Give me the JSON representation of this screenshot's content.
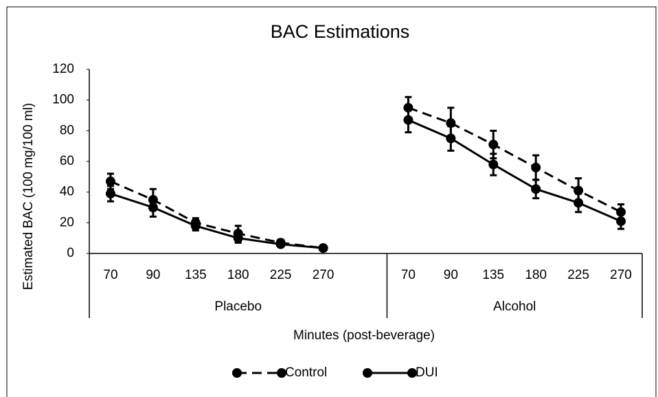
{
  "chart_data": {
    "type": "line",
    "title": "BAC Estimations",
    "xlabel": "Minutes (post-beverage)",
    "ylabel": "Estimated BAC (100 mg/100 ml)",
    "groups": [
      {
        "name": "Placebo",
        "categories": [
          "70",
          "90",
          "135",
          "180",
          "225",
          "270",
          null
        ]
      },
      {
        "name": "Alcohol",
        "categories": [
          "70",
          "90",
          "135",
          "180",
          "225",
          "270"
        ]
      }
    ],
    "series": [
      {
        "name": "Control",
        "color": "#000000",
        "linestyle": "dashed",
        "values": [
          47,
          35,
          20,
          13,
          7,
          3.5,
          null,
          95,
          85,
          71,
          56,
          41,
          27
        ],
        "errors": [
          5,
          7,
          3,
          5,
          2,
          1,
          null,
          7,
          10,
          9,
          8,
          8,
          5
        ]
      },
      {
        "name": "DUI",
        "color": "#000000",
        "linestyle": "solid",
        "values": [
          39,
          30,
          18,
          10,
          6,
          3.5,
          null,
          87,
          75,
          58,
          42,
          33,
          21
        ],
        "errors": [
          5,
          6,
          3,
          3,
          1.5,
          1,
          null,
          8,
          8,
          7,
          6,
          6,
          5
        ]
      }
    ],
    "ylim": [
      0,
      120
    ],
    "yticks": [
      0,
      20,
      40,
      60,
      80,
      100,
      120
    ],
    "legend": "bottom"
  }
}
